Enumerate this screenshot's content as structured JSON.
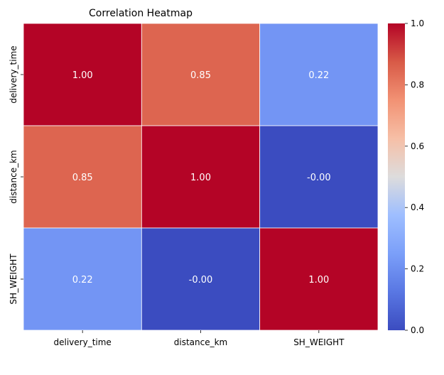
{
  "chart_data": {
    "type": "heatmap",
    "title": "Correlation Heatmap",
    "x_categories": [
      "delivery_time",
      "distance_km",
      "SH_WEIGHT"
    ],
    "y_categories": [
      "delivery_time",
      "distance_km",
      "SH_WEIGHT"
    ],
    "values": [
      [
        1.0,
        0.85,
        0.22
      ],
      [
        0.85,
        1.0,
        -0.0
      ],
      [
        0.22,
        -0.0,
        1.0
      ]
    ],
    "cell_labels": [
      [
        "1.00",
        "0.85",
        "0.22"
      ],
      [
        "0.85",
        "1.00",
        "-0.00"
      ],
      [
        "0.22",
        "-0.00",
        "1.00"
      ]
    ],
    "colormap": "coolwarm",
    "color_range": [
      0,
      1
    ],
    "colorbar_ticks": [
      0.0,
      0.2,
      0.4,
      0.6,
      0.8,
      1.0
    ],
    "colorbar_tick_labels": [
      "0.0",
      "0.2",
      "0.4",
      "0.6",
      "0.8",
      "1.0"
    ],
    "cell_border_color": "#ffffff",
    "annotation_color": "#ffffff"
  }
}
